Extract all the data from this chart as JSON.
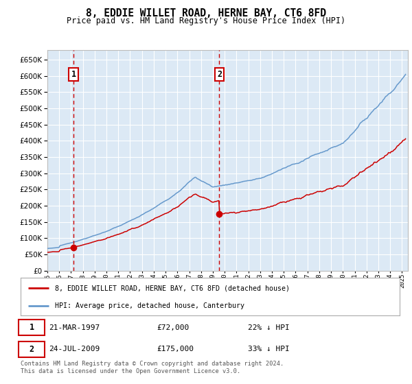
{
  "title": "8, EDDIE WILLET ROAD, HERNE BAY, CT6 8FD",
  "subtitle": "Price paid vs. HM Land Registry's House Price Index (HPI)",
  "ylim": [
    0,
    680000
  ],
  "yticks": [
    0,
    50000,
    100000,
    150000,
    200000,
    250000,
    300000,
    350000,
    400000,
    450000,
    500000,
    550000,
    600000,
    650000
  ],
  "background_color": "#dce9f5",
  "grid_color": "#ffffff",
  "hpi_color": "#6699cc",
  "price_color": "#cc0000",
  "sale1_date": "21-MAR-1997",
  "sale1_price": 72000,
  "sale1_pct": "22%",
  "sale1_year": 1997.22,
  "sale2_date": "24-JUL-2009",
  "sale2_price": 175000,
  "sale2_pct": "33%",
  "sale2_year": 2009.55,
  "legend_line1": "8, EDDIE WILLET ROAD, HERNE BAY, CT6 8FD (detached house)",
  "legend_line2": "HPI: Average price, detached house, Canterbury",
  "footer": "Contains HM Land Registry data © Crown copyright and database right 2024.\nThis data is licensed under the Open Government Licence v3.0.",
  "xmin": 1995,
  "xmax": 2025.5
}
